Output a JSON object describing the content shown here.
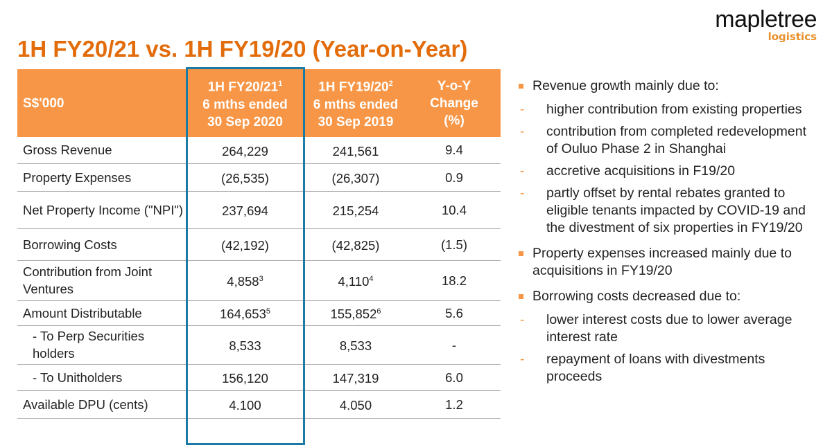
{
  "logo": {
    "name": "mapletree",
    "sub": "logistics"
  },
  "title": "1H FY20/21 vs. 1H FY19/20 (Year-on-Year)",
  "table": {
    "headers": [
      {
        "label": "S$'000"
      },
      {
        "l1": "1H FY20/21",
        "sup": "1",
        "l2": "6 mths ended",
        "l3": "30 Sep 2020"
      },
      {
        "l1": "1H FY19/20",
        "sup": "2",
        "l2": "6 mths ended",
        "l3": "30 Sep 2019"
      },
      {
        "l1": "Y-o-Y",
        "l2": "Change",
        "l3": "(%)"
      }
    ],
    "rows": [
      {
        "label": "Gross Revenue",
        "c1": "264,229",
        "c2": "241,561",
        "c3": "9.4"
      },
      {
        "label": "Property Expenses",
        "c1": "(26,535)",
        "c2": "(26,307)",
        "c3": "0.9"
      },
      {
        "label": "Net Property Income (\"NPI\")",
        "c1": "237,694",
        "c2": "215,254",
        "c3": "10.4"
      },
      {
        "label": "Borrowing Costs",
        "c1": "(42,192)",
        "c2": "(42,825)",
        "c3": "(1.5)"
      },
      {
        "label": "Contribution from Joint Ventures",
        "c1": "4,858",
        "s1": "3",
        "c2": "4,110",
        "s2": "4",
        "c3": "18.2"
      },
      {
        "label": "Amount Distributable",
        "c1": "164,653",
        "s1": "5",
        "c2": "155,852",
        "s2": "6",
        "c3": "5.6"
      },
      {
        "label": "- To Perp Securities holders",
        "c1": "8,533",
        "c2": "8,533",
        "c3": "-"
      },
      {
        "label": "- To Unitholders",
        "c1": "156,120",
        "c2": "147,319",
        "c3": "6.0"
      },
      {
        "label": "Available DPU (cents)",
        "c1": "4.100",
        "c2": "4.050",
        "c3": "1.2"
      }
    ]
  },
  "bullets": [
    {
      "text": "Revenue growth mainly due to:",
      "subs": [
        "higher contribution from existing properties",
        "contribution from completed redevelopment of Ouluo Phase 2 in Shanghai",
        "accretive acquisitions in F19/20",
        "partly offset by rental rebates granted to eligible tenants impacted by COVID-19 and the divestment of six properties in FY19/20"
      ]
    },
    {
      "text": "Property expenses increased mainly due to acquisitions in FY19/20",
      "subs": []
    },
    {
      "text": "Borrowing costs decreased due to:",
      "subs": [
        "lower interest costs due to lower average interest rate",
        "repayment of loans with divestments proceeds"
      ]
    }
  ],
  "colors": {
    "accent": "#f79646",
    "title": "#e36c0a",
    "highlight": "#1b7ba4"
  }
}
